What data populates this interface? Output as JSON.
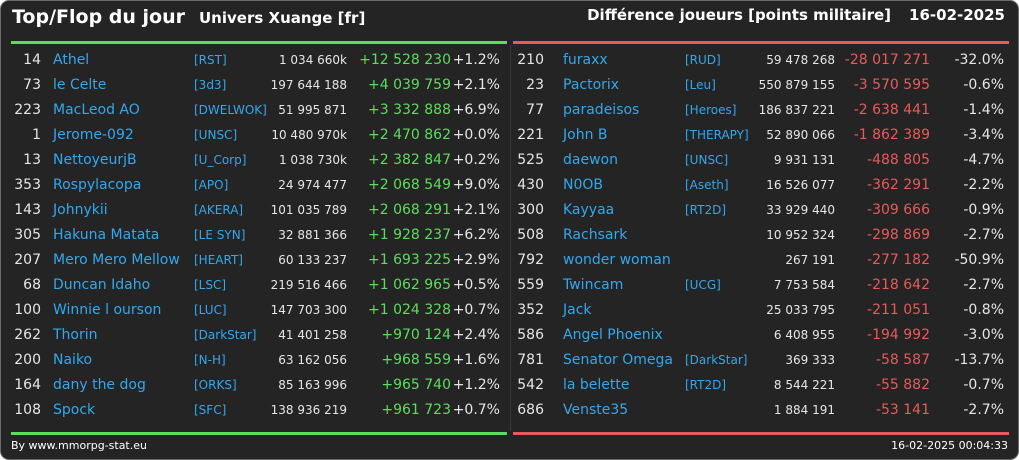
{
  "header": {
    "title": "Top/Flop du jour",
    "universe": "Univers Xuange [fr]",
    "metric": "Différence joueurs [points militaire]",
    "date": "16-02-2025"
  },
  "colors": {
    "positive": "#5ddc5d",
    "negative": "#e85a5a",
    "link": "#33a8ee",
    "background": "#242424"
  },
  "top": [
    {
      "rank": "14",
      "name": "Athel",
      "ally": "[RST]",
      "points": "1 034 660k",
      "diff": "+12 528 230",
      "pct": "+1.2%"
    },
    {
      "rank": "73",
      "name": "le Celte",
      "ally": "[3d3]",
      "points": "197 644 188",
      "diff": "+4 039 759",
      "pct": "+2.1%"
    },
    {
      "rank": "223",
      "name": "MacLeod AO",
      "ally": "[DWELWOK]",
      "points": "51 995 871",
      "diff": "+3 332 888",
      "pct": "+6.9%"
    },
    {
      "rank": "1",
      "name": "Jerome-092",
      "ally": "[UNSC]",
      "points": "10 480 970k",
      "diff": "+2 470 862",
      "pct": "+0.0%"
    },
    {
      "rank": "13",
      "name": "NettoyeurjB",
      "ally": "[U_Corp]",
      "points": "1 038 730k",
      "diff": "+2 382 847",
      "pct": "+0.2%"
    },
    {
      "rank": "353",
      "name": "Rospylacopa",
      "ally": "[APO]",
      "points": "24 974 477",
      "diff": "+2 068 549",
      "pct": "+9.0%"
    },
    {
      "rank": "143",
      "name": "Johnykii",
      "ally": "[AKERA]",
      "points": "101 035 789",
      "diff": "+2 068 291",
      "pct": "+2.1%"
    },
    {
      "rank": "305",
      "name": "Hakuna Matata",
      "ally": "[LE SYN]",
      "points": "32 881 366",
      "diff": "+1 928 237",
      "pct": "+6.2%"
    },
    {
      "rank": "207",
      "name": "Mero Mero Mellow",
      "ally": "[HEART]",
      "points": "60 133 237",
      "diff": "+1 693 225",
      "pct": "+2.9%"
    },
    {
      "rank": "68",
      "name": "Duncan Idaho",
      "ally": "[LSC]",
      "points": "219 516 466",
      "diff": "+1 062 965",
      "pct": "+0.5%"
    },
    {
      "rank": "100",
      "name": "Winnie l ourson",
      "ally": "[LUC]",
      "points": "147 703 300",
      "diff": "+1 024 328",
      "pct": "+0.7%"
    },
    {
      "rank": "262",
      "name": "Thorin",
      "ally": "[DarkStar]",
      "points": "41 401 258",
      "diff": "+970 124",
      "pct": "+2.4%"
    },
    {
      "rank": "200",
      "name": "Naiko",
      "ally": "[N-H]",
      "points": "63 162 056",
      "diff": "+968 559",
      "pct": "+1.6%"
    },
    {
      "rank": "164",
      "name": "dany the dog",
      "ally": "[ORKS]",
      "points": "85 163 996",
      "diff": "+965 740",
      "pct": "+1.2%"
    },
    {
      "rank": "108",
      "name": "Spock",
      "ally": "[SFC]",
      "points": "138 936 219",
      "diff": "+961 723",
      "pct": "+0.7%"
    }
  ],
  "flop": [
    {
      "rank": "210",
      "name": "furaxx",
      "ally": "[RUD]",
      "points": "59 478 268",
      "diff": "-28 017 271",
      "pct": "-32.0%"
    },
    {
      "rank": "23",
      "name": "Pactorix",
      "ally": "[Leu]",
      "points": "550 879 155",
      "diff": "-3 570 595",
      "pct": "-0.6%"
    },
    {
      "rank": "77",
      "name": "paradeisos",
      "ally": "[Heroes]",
      "points": "186 837 221",
      "diff": "-2 638 441",
      "pct": "-1.4%"
    },
    {
      "rank": "221",
      "name": "John B",
      "ally": "[THERAPY]",
      "points": "52 890 066",
      "diff": "-1 862 389",
      "pct": "-3.4%"
    },
    {
      "rank": "525",
      "name": "daewon",
      "ally": "[UNSC]",
      "points": "9 931 131",
      "diff": "-488 805",
      "pct": "-4.7%"
    },
    {
      "rank": "430",
      "name": "N0OB",
      "ally": "[Aseth]",
      "points": "16 526 077",
      "diff": "-362 291",
      "pct": "-2.2%"
    },
    {
      "rank": "300",
      "name": "Kayyaa",
      "ally": "[RT2D]",
      "points": "33 929 440",
      "diff": "-309 666",
      "pct": "-0.9%"
    },
    {
      "rank": "508",
      "name": "Rachsark",
      "ally": "",
      "points": "10 952 324",
      "diff": "-298 869",
      "pct": "-2.7%"
    },
    {
      "rank": "792",
      "name": "wonder woman",
      "ally": "",
      "points": "267 191",
      "diff": "-277 182",
      "pct": "-50.9%"
    },
    {
      "rank": "559",
      "name": "Twincam",
      "ally": "[UCG]",
      "points": "7 753 584",
      "diff": "-218 642",
      "pct": "-2.7%"
    },
    {
      "rank": "352",
      "name": "Jack",
      "ally": "",
      "points": "25 033 795",
      "diff": "-211 051",
      "pct": "-0.8%"
    },
    {
      "rank": "586",
      "name": "Angel Phoenix",
      "ally": "",
      "points": "6 408 955",
      "diff": "-194 992",
      "pct": "-3.0%"
    },
    {
      "rank": "781",
      "name": "Senator Omega",
      "ally": "[DarkStar]",
      "points": "369 333",
      "diff": "-58 587",
      "pct": "-13.7%"
    },
    {
      "rank": "542",
      "name": "la belette",
      "ally": "[RT2D]",
      "points": "8 544 221",
      "diff": "-55 882",
      "pct": "-0.7%"
    },
    {
      "rank": "686",
      "name": "Venste35",
      "ally": "",
      "points": "1 884 191",
      "diff": "-53 141",
      "pct": "-2.7%"
    }
  ],
  "footer": {
    "credit": "By www.mmorpg-stat.eu",
    "timestamp": "16-02-2025 00:04:33"
  }
}
